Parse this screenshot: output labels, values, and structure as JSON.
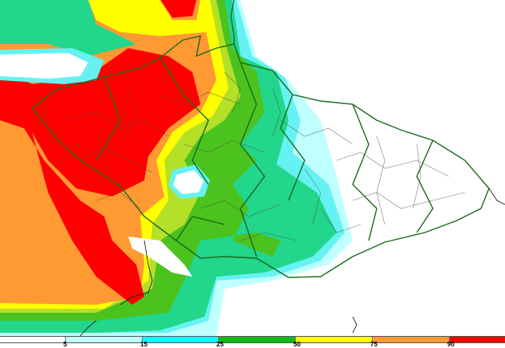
{
  "legend": {
    "segments": [
      {
        "color": "#ffffff"
      },
      {
        "color": "#c0ffff"
      },
      {
        "color": "#00ffff"
      },
      {
        "color": "#14b814"
      },
      {
        "color": "#ffff00"
      },
      {
        "color": "#ff9933"
      },
      {
        "color": "#ff0000"
      }
    ],
    "labels": [
      "5",
      "15",
      "25",
      "50",
      "75",
      "90"
    ]
  },
  "map_colors": {
    "light_cyan": "#c0ffff",
    "cyan": "#66f2f2",
    "teal": "#22d68c",
    "green": "#4cc21e",
    "yellow_green": "#b4e028",
    "yellow": "#ffff00",
    "orange": "#ff9a33",
    "red": "#ff0000",
    "border": "#1a6a1a",
    "districts": "#444444"
  }
}
